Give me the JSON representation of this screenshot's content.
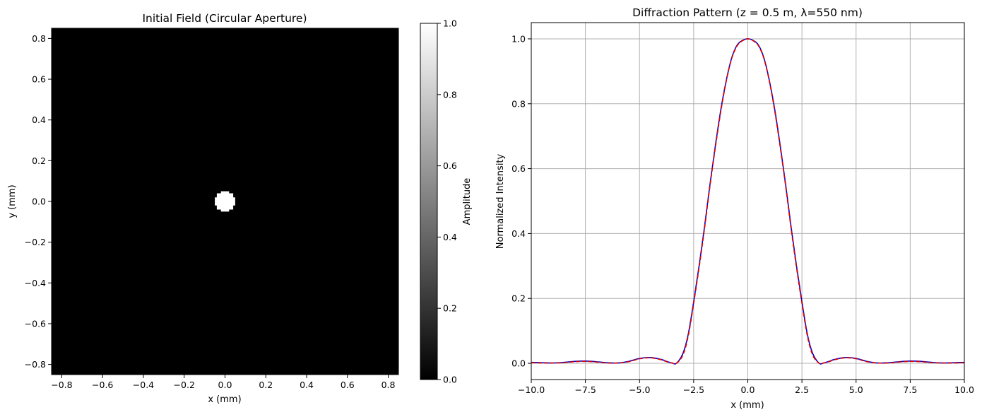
{
  "chart_data": [
    {
      "type": "heatmap",
      "title": "Initial Field (Circular Aperture)",
      "xlabel": "x (mm)",
      "ylabel": "y (mm)",
      "xlim": [
        -0.85,
        0.85
      ],
      "ylim": [
        -0.85,
        0.85
      ],
      "xticks": [
        "−0.8",
        "−0.6",
        "−0.4",
        "−0.2",
        "0.0",
        "0.2",
        "0.4",
        "0.6",
        "0.8"
      ],
      "xtick_values": [
        -0.8,
        -0.6,
        -0.4,
        -0.2,
        0.0,
        0.2,
        0.4,
        0.6,
        0.8
      ],
      "yticks": [
        "−0.8",
        "−0.6",
        "−0.4",
        "−0.2",
        "0.0",
        "0.2",
        "0.4",
        "0.6",
        "0.8"
      ],
      "ytick_values": [
        -0.8,
        -0.6,
        -0.4,
        -0.2,
        0.0,
        0.2,
        0.4,
        0.6,
        0.8
      ],
      "colormap": "gray",
      "background_color": "#000000",
      "aperture": {
        "center_x": 0.0,
        "center_y": 0.0,
        "radius_mm": 0.05,
        "amplitude": 1.0
      },
      "colorbar": {
        "label": "Amplitude",
        "range": [
          0.0,
          1.0
        ],
        "ticks": [
          "0.0",
          "0.2",
          "0.4",
          "0.6",
          "0.8",
          "1.0"
        ],
        "tick_values": [
          0.0,
          0.2,
          0.4,
          0.6,
          0.8,
          1.0
        ]
      }
    },
    {
      "type": "line",
      "title": "Diffraction Pattern (z = 0.5 m, λ=550 nm)",
      "xlabel": "x (mm)",
      "ylabel": "Normalized Intensity",
      "xlim": [
        -10,
        10
      ],
      "ylim": [
        -0.05,
        1.05
      ],
      "grid": true,
      "xticks": [
        "−10.0",
        "−7.5",
        "−5.0",
        "−2.5",
        "0.0",
        "2.5",
        "5.0",
        "7.5",
        "10.0"
      ],
      "xtick_values": [
        -10,
        -7.5,
        -5,
        -2.5,
        0,
        2.5,
        5,
        7.5,
        10
      ],
      "yticks": [
        "0.0",
        "0.2",
        "0.4",
        "0.6",
        "0.8",
        "1.0"
      ],
      "ytick_values": [
        0.0,
        0.2,
        0.4,
        0.6,
        0.8,
        1.0
      ],
      "x": [
        -10,
        -9.5,
        -9,
        -8.5,
        -8,
        -7.5,
        -7,
        -6.5,
        -6,
        -5.5,
        -5,
        -4.5,
        -4,
        -3.75,
        -3.5,
        -3.3,
        -3.0,
        -2.75,
        -2.5,
        -2.25,
        -2.0,
        -1.75,
        -1.5,
        -1.25,
        -1.0,
        -0.75,
        -0.5,
        -0.25,
        0,
        0.25,
        0.5,
        0.75,
        1.0,
        1.25,
        1.5,
        1.75,
        2.0,
        2.25,
        2.5,
        2.75,
        3.0,
        3.3,
        3.5,
        3.75,
        4,
        4.5,
        5,
        5.5,
        6,
        6.5,
        7,
        7.5,
        8,
        8.5,
        9,
        9.5,
        10
      ],
      "series": [
        {
          "color": "#0000cc",
          "style": "solid",
          "values": [
            0.003,
            0.002,
            0.001,
            0.003,
            0.006,
            0.007,
            0.005,
            0.002,
            0.001,
            0.006,
            0.015,
            0.018,
            0.012,
            0.006,
            0.001,
            0.0,
            0.03,
            0.09,
            0.19,
            0.3,
            0.42,
            0.55,
            0.67,
            0.78,
            0.87,
            0.94,
            0.98,
            0.995,
            1.0,
            0.995,
            0.98,
            0.94,
            0.87,
            0.78,
            0.67,
            0.55,
            0.42,
            0.3,
            0.19,
            0.09,
            0.03,
            0.0,
            0.001,
            0.006,
            0.012,
            0.018,
            0.015,
            0.006,
            0.001,
            0.002,
            0.005,
            0.007,
            0.006,
            0.003,
            0.001,
            0.002,
            0.003
          ]
        },
        {
          "color": "#dd0000",
          "style": "dashed",
          "values": [
            0.002,
            0.001,
            0.001,
            0.002,
            0.005,
            0.006,
            0.004,
            0.001,
            0.001,
            0.005,
            0.014,
            0.017,
            0.011,
            0.005,
            0.001,
            0.0,
            0.025,
            0.085,
            0.185,
            0.295,
            0.415,
            0.545,
            0.665,
            0.775,
            0.868,
            0.938,
            0.978,
            0.994,
            1.0,
            0.994,
            0.978,
            0.938,
            0.868,
            0.775,
            0.665,
            0.545,
            0.415,
            0.295,
            0.185,
            0.085,
            0.025,
            0.0,
            0.001,
            0.005,
            0.011,
            0.017,
            0.014,
            0.005,
            0.001,
            0.001,
            0.004,
            0.006,
            0.005,
            0.002,
            0.001,
            0.001,
            0.002
          ]
        }
      ]
    }
  ]
}
